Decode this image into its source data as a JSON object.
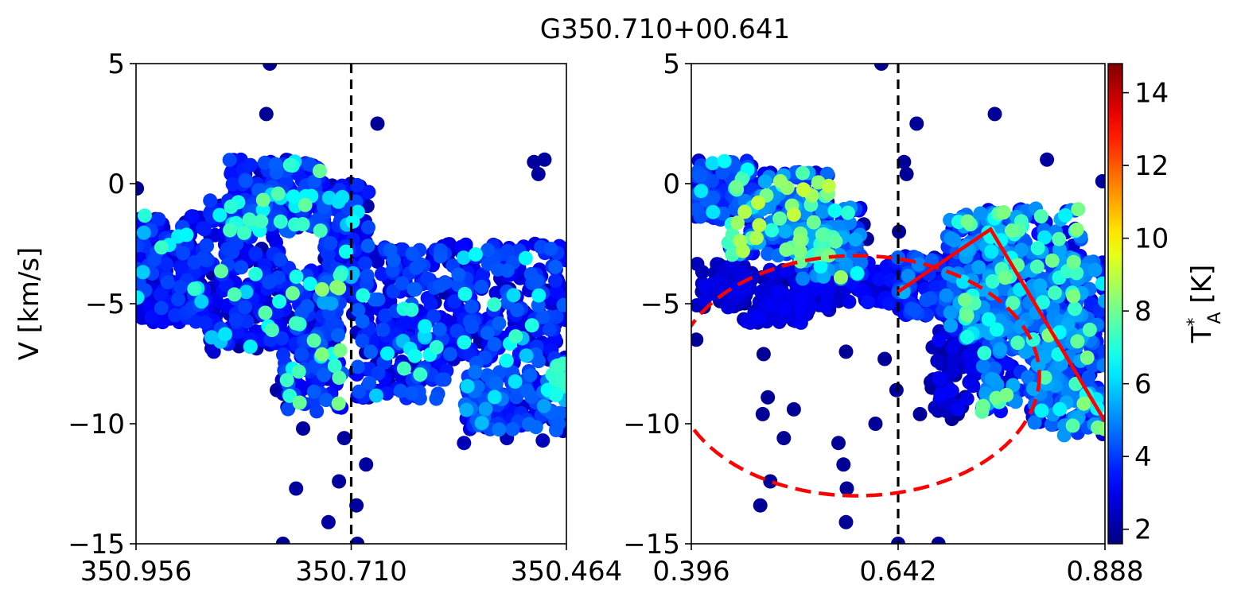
{
  "title": "G350.710+00.641",
  "chart_data": [
    {
      "type": "scatter",
      "panel": "left",
      "xlabel": "",
      "ylabel": "V [km/s]",
      "xlim": [
        350.956,
        350.464
      ],
      "ylim": [
        -15,
        5
      ],
      "xticks": [
        350.956,
        350.71,
        350.464
      ],
      "xtick_labels": [
        "350.956",
        "350.710",
        "350.464"
      ],
      "yticks": [
        5,
        0,
        -5,
        -10,
        -15
      ],
      "ytick_labels": [
        "5",
        "0",
        "−5",
        "−10",
        "−15"
      ],
      "vline_x": 350.71,
      "points": [
        {
          "x": 350.955,
          "y": -0.2,
          "t": 1.8
        },
        {
          "x": 350.803,
          "y": 5.0,
          "t": 1.9
        },
        {
          "x": 350.807,
          "y": 2.9,
          "t": 1.9
        },
        {
          "x": 350.68,
          "y": 2.5,
          "t": 1.9
        },
        {
          "x": 350.501,
          "y": 0.9,
          "t": 2.0
        },
        {
          "x": 350.496,
          "y": 0.4,
          "t": 2.0
        },
        {
          "x": 350.489,
          "y": 1.0,
          "t": 2.0
        },
        {
          "x": 350.795,
          "y": -8.6,
          "t": 2.0
        },
        {
          "x": 350.783,
          "y": -9.3,
          "t": 2.0
        },
        {
          "x": 350.773,
          "y": -12.7,
          "t": 2.0
        },
        {
          "x": 350.765,
          "y": -10.2,
          "t": 2.0
        },
        {
          "x": 350.736,
          "y": -14.1,
          "t": 2.0
        },
        {
          "x": 350.724,
          "y": -12.4,
          "t": 2.0
        },
        {
          "x": 350.704,
          "y": -13.4,
          "t": 2.0
        },
        {
          "x": 350.693,
          "y": -11.7,
          "t": 2.0
        },
        {
          "x": 350.788,
          "y": -15.0,
          "t": 1.9
        },
        {
          "x": 350.703,
          "y": -15.0,
          "t": 1.9
        },
        {
          "x": 350.718,
          "y": -10.6,
          "t": 2.0
        },
        {
          "x": 350.69,
          "y": -8.9,
          "t": 2.2
        },
        {
          "x": 350.667,
          "y": -8.3,
          "t": 2.3
        },
        {
          "x": 350.581,
          "y": -10.8,
          "t": 2.3
        },
        {
          "x": 350.532,
          "y": -10.6,
          "t": 2.3
        },
        {
          "x": 350.491,
          "y": -10.7,
          "t": 2.3
        },
        {
          "x": 350.468,
          "y": -10.3,
          "t": 2.3
        }
      ],
      "clusters": [
        {
          "x": [
            350.955,
            350.873
          ],
          "y": [
            -5.8,
            -1.3
          ],
          "n": 240,
          "t_lo": 2.0,
          "t_hi": 4.2,
          "hot_frac": 0.05,
          "t_hot": 6.5
        },
        {
          "x": [
            350.873,
            350.79
          ],
          "y": [
            -7.0,
            -0.5
          ],
          "n": 260,
          "t_lo": 2.0,
          "t_hi": 4.2,
          "hot_frac": 0.06,
          "t_hot": 6.8
        },
        {
          "x": [
            350.85,
            350.74
          ],
          "y": [
            -2.0,
            1.0
          ],
          "n": 220,
          "t_lo": 2.0,
          "t_hi": 4.5,
          "hot_frac": 0.1,
          "t_hot": 7.0
        },
        {
          "x": [
            350.79,
            350.72
          ],
          "y": [
            -9.5,
            -3.5
          ],
          "n": 200,
          "t_lo": 2.2,
          "t_hi": 4.5,
          "hot_frac": 0.1,
          "t_hot": 7.4
        },
        {
          "x": [
            350.745,
            350.69
          ],
          "y": [
            -5.0,
            0.0
          ],
          "n": 160,
          "t_lo": 2.0,
          "t_hi": 4.2,
          "hot_frac": 0.05,
          "t_hot": 6.0
        },
        {
          "x": [
            350.71,
            350.6
          ],
          "y": [
            -9.0,
            -2.5
          ],
          "n": 240,
          "t_lo": 2.0,
          "t_hi": 4.5,
          "hot_frac": 0.06,
          "t_hot": 6.5
        },
        {
          "x": [
            350.6,
            350.464
          ],
          "y": [
            -7.5,
            -2.5
          ],
          "n": 260,
          "t_lo": 2.0,
          "t_hi": 4.5,
          "hot_frac": 0.05,
          "t_hot": 6.5
        },
        {
          "x": [
            350.58,
            350.464
          ],
          "y": [
            -10.3,
            -7.8
          ],
          "n": 160,
          "t_lo": 2.5,
          "t_hi": 4.8,
          "hot_frac": 0.05,
          "t_hot": 6.2
        },
        {
          "x": [
            350.476,
            350.464
          ],
          "y": [
            -9.5,
            -7.5
          ],
          "n": 20,
          "t_lo": 5.5,
          "t_hi": 7.5,
          "hot_frac": 0.0,
          "t_hot": 7.0
        }
      ]
    },
    {
      "type": "scatter",
      "panel": "right",
      "xlabel": "",
      "ylabel": "",
      "xlim": [
        0.396,
        0.888
      ],
      "ylim": [
        -15,
        5
      ],
      "xticks": [
        0.396,
        0.642,
        0.888
      ],
      "xtick_labels": [
        "0.396",
        "0.642",
        "0.888"
      ],
      "yticks": [
        5,
        0,
        -5,
        -10,
        -15
      ],
      "ytick_labels": [
        "5",
        "0",
        "−5",
        "−10",
        "−15"
      ],
      "vline_x": 0.642,
      "colorbar": {
        "label": "T*A [K]",
        "label_main": "T",
        "label_sup": "*",
        "label_sub": "A",
        "label_unit": " [K]",
        "colormap": "jet",
        "vmin": 1.6,
        "vmax": 14.8,
        "ticks": [
          2,
          4,
          6,
          8,
          10,
          12,
          14
        ],
        "tick_labels": [
          "2",
          "4",
          "6",
          "8",
          "10",
          "12",
          "14"
        ]
      },
      "ellipse": {
        "cx": 0.593,
        "cy": -8.0,
        "rx": 0.217,
        "ry": 5.0,
        "color": "#ff0000",
        "style": "dashed"
      },
      "polyline": {
        "x": [
          0.642,
          0.752,
          0.888
        ],
        "y": [
          -4.5,
          -1.9,
          -9.9
        ],
        "color": "#ff0000"
      },
      "points": [
        {
          "x": 0.622,
          "y": 5.0,
          "t": 1.9
        },
        {
          "x": 0.649,
          "y": 0.9,
          "t": 1.9
        },
        {
          "x": 0.652,
          "y": 0.4,
          "t": 1.9
        },
        {
          "x": 0.664,
          "y": 2.5,
          "t": 1.9
        },
        {
          "x": 0.757,
          "y": 2.9,
          "t": 1.9
        },
        {
          "x": 0.819,
          "y": 1.0,
          "t": 2.0
        },
        {
          "x": 0.885,
          "y": 0.1,
          "t": 2.0
        },
        {
          "x": 0.402,
          "y": -6.5,
          "t": 1.9
        },
        {
          "x": 0.554,
          "y": -4.8,
          "t": 1.9
        },
        {
          "x": 0.482,
          "y": -7.1,
          "t": 1.9
        },
        {
          "x": 0.518,
          "y": -9.4,
          "t": 1.9
        },
        {
          "x": 0.487,
          "y": -8.9,
          "t": 1.9
        },
        {
          "x": 0.481,
          "y": -9.6,
          "t": 1.9
        },
        {
          "x": 0.506,
          "y": -10.6,
          "t": 1.9
        },
        {
          "x": 0.49,
          "y": -12.4,
          "t": 1.9
        },
        {
          "x": 0.478,
          "y": -13.4,
          "t": 1.9
        },
        {
          "x": 0.58,
          "y": -7.0,
          "t": 1.9
        },
        {
          "x": 0.571,
          "y": -10.8,
          "t": 1.9
        },
        {
          "x": 0.577,
          "y": -11.7,
          "t": 1.9
        },
        {
          "x": 0.581,
          "y": -12.7,
          "t": 1.9
        },
        {
          "x": 0.58,
          "y": -14.1,
          "t": 1.9
        },
        {
          "x": 0.626,
          "y": -7.3,
          "t": 1.9
        },
        {
          "x": 0.615,
          "y": -10.0,
          "t": 1.9
        },
        {
          "x": 0.64,
          "y": -8.6,
          "t": 1.9
        },
        {
          "x": 0.642,
          "y": -15.0,
          "t": 1.9
        },
        {
          "x": 0.69,
          "y": -15.0,
          "t": 1.9
        },
        {
          "x": 0.643,
          "y": -2.0,
          "t": 1.9
        },
        {
          "x": 0.601,
          "y": -1.7,
          "t": 1.9
        },
        {
          "x": 0.605,
          "y": -2.3,
          "t": 1.9
        },
        {
          "x": 0.69,
          "y": -6.9,
          "t": 1.9
        },
        {
          "x": 0.703,
          "y": -6.8,
          "t": 1.9
        },
        {
          "x": 0.682,
          "y": -8.5,
          "t": 1.9
        },
        {
          "x": 0.704,
          "y": -8.6,
          "t": 1.9
        },
        {
          "x": 0.668,
          "y": -9.6,
          "t": 1.9
        },
        {
          "x": 0.706,
          "y": -9.8,
          "t": 1.9
        },
        {
          "x": 0.718,
          "y": -9.3,
          "t": 1.9
        },
        {
          "x": 0.713,
          "y": -9.6,
          "t": 1.9
        },
        {
          "x": 0.696,
          "y": -7.3,
          "t": 1.9
        },
        {
          "x": 0.708,
          "y": -7.9,
          "t": 1.9
        }
      ],
      "clusters": [
        {
          "x": [
            0.4,
            0.47
          ],
          "y": [
            -1.5,
            1.0
          ],
          "n": 120,
          "t_lo": 2.0,
          "t_hi": 4.5,
          "hot_frac": 0.08,
          "t_hot": 7.0
        },
        {
          "x": [
            0.44,
            0.56
          ],
          "y": [
            -3.0,
            0.5
          ],
          "n": 200,
          "t_lo": 2.5,
          "t_hi": 5.5,
          "hot_frac": 0.18,
          "t_hot": 8.0
        },
        {
          "x": [
            0.52,
            0.6
          ],
          "y": [
            -4.0,
            -1.0
          ],
          "n": 120,
          "t_lo": 2.5,
          "t_hi": 5.5,
          "hot_frac": 0.15,
          "t_hot": 7.5
        },
        {
          "x": [
            0.4,
            0.46
          ],
          "y": [
            -5.2,
            -3.3
          ],
          "n": 60,
          "t_lo": 1.8,
          "t_hi": 3.0,
          "hot_frac": 0.0,
          "t_hot": 3.0
        },
        {
          "x": [
            0.45,
            0.56
          ],
          "y": [
            -5.8,
            -3.5
          ],
          "n": 140,
          "t_lo": 1.8,
          "t_hi": 3.2,
          "hot_frac": 0.0,
          "t_hot": 3.0
        },
        {
          "x": [
            0.54,
            0.645
          ],
          "y": [
            -5.0,
            -3.2
          ],
          "n": 110,
          "t_lo": 1.8,
          "t_hi": 3.5,
          "hot_frac": 0.0,
          "t_hot": 3.5
        },
        {
          "x": [
            0.64,
            0.72
          ],
          "y": [
            -5.5,
            -3.0
          ],
          "n": 140,
          "t_lo": 2.0,
          "t_hi": 4.5,
          "hot_frac": 0.04,
          "t_hot": 5.8
        },
        {
          "x": [
            0.7,
            0.79
          ],
          "y": [
            -6.5,
            -1.2
          ],
          "n": 240,
          "t_lo": 2.5,
          "t_hi": 5.5,
          "hot_frac": 0.1,
          "t_hot": 7.0
        },
        {
          "x": [
            0.74,
            0.86
          ],
          "y": [
            -9.5,
            -1.0
          ],
          "n": 320,
          "t_lo": 2.5,
          "t_hi": 5.5,
          "hot_frac": 0.1,
          "t_hot": 7.2
        },
        {
          "x": [
            0.8,
            0.888
          ],
          "y": [
            -10.5,
            -3.0
          ],
          "n": 240,
          "t_lo": 2.5,
          "t_hi": 5.5,
          "hot_frac": 0.1,
          "t_hot": 7.2
        },
        {
          "x": [
            0.68,
            0.76
          ],
          "y": [
            -9.5,
            -5.5
          ],
          "n": 110,
          "t_lo": 1.8,
          "t_hi": 3.2,
          "hot_frac": 0.0,
          "t_hot": 3.0
        }
      ]
    }
  ]
}
